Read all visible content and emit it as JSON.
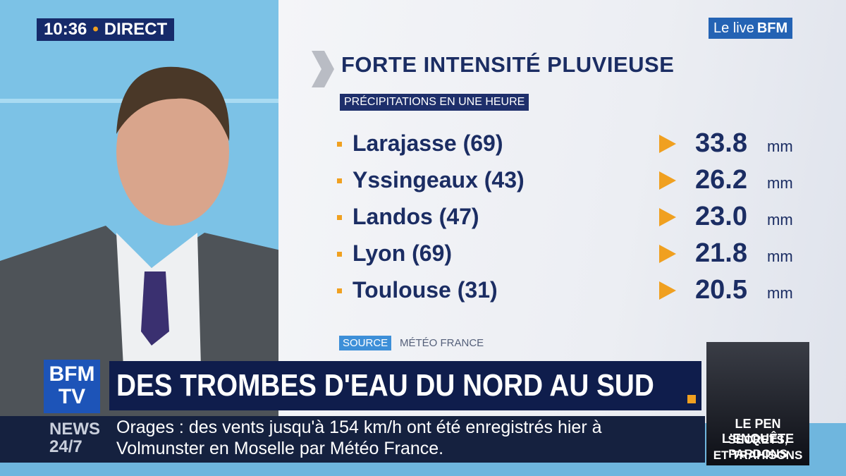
{
  "clock": {
    "time": "10:36",
    "live": "DIRECT"
  },
  "logo": {
    "prefix": "Le live",
    "brand": "BFM"
  },
  "graphic": {
    "title": "FORTE INTENSITÉ PLUVIEUSE",
    "subtitle": "PRÉCIPITATIONS EN UNE HEURE",
    "rows": [
      {
        "place": "Larajasse (69)",
        "value": "33.8",
        "unit": "mm"
      },
      {
        "place": "Yssingeaux (43)",
        "value": "26.2",
        "unit": "mm"
      },
      {
        "place": "Landos (47)",
        "value": "23.0",
        "unit": "mm"
      },
      {
        "place": "Lyon (69)",
        "value": "21.8",
        "unit": "mm"
      },
      {
        "place": "Toulouse (31)",
        "value": "20.5",
        "unit": "mm"
      }
    ],
    "source_label": "SOURCE",
    "source": "MÉTÉO FRANCE"
  },
  "banner": {
    "channel": [
      "BFM",
      "TV"
    ],
    "headline": "DES TROMBES D'EAU DU NORD AU SUD"
  },
  "ticker": {
    "label": [
      "NEWS",
      "24/7"
    ],
    "lines": [
      "Orages : des vents jusqu'à 154 km/h ont été enregistrés hier à",
      "Volmunster en Moselle par Météo France."
    ]
  },
  "promo": {
    "lines": [
      "LE PEN L'ENQUÊTE",
      "SECRETS, PARDONS",
      "ET TRAHISONS"
    ]
  }
}
